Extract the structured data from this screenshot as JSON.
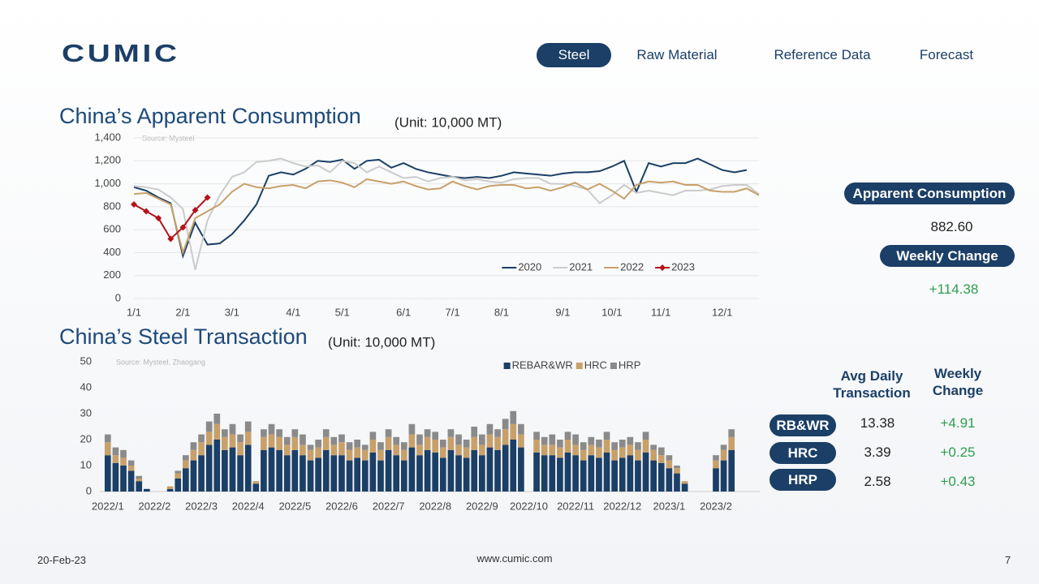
{
  "header": {
    "logo": "CUMIC",
    "tabs": [
      "Steel",
      "Raw Material",
      "Reference Data",
      "Forecast"
    ]
  },
  "chart_data": [
    {
      "type": "line",
      "title": "China’s Apparent Consumption",
      "subtitle": "(Unit: 10,000 MT)",
      "source": "Source: Mysteel",
      "categories": [
        "1/1",
        null,
        null,
        null,
        "2/1",
        null,
        null,
        null,
        "3/1",
        null,
        null,
        null,
        null,
        "4/1",
        null,
        null,
        null,
        "5/1",
        null,
        null,
        null,
        null,
        "6/1",
        null,
        null,
        null,
        "7/1",
        null,
        null,
        null,
        "8/1",
        null,
        null,
        null,
        null,
        "9/1",
        null,
        null,
        null,
        "10/1",
        null,
        null,
        null,
        "11/1",
        null,
        null,
        null,
        null,
        "12/1",
        null,
        null,
        null
      ],
      "ylim": [
        0,
        1400
      ],
      "yticks": [
        0,
        200,
        400,
        600,
        800,
        {
          "value": 1000,
          "label": "1,000"
        },
        {
          "value": 1200,
          "label": "1,200"
        },
        {
          "value": 1400,
          "label": "1,400"
        }
      ],
      "grid": true,
      "legend": "bottom-right",
      "series": [
        {
          "name": "2020",
          "color": "#1b3f66",
          "values": [
            970,
            940,
            880,
            830,
            370,
            660,
            470,
            480,
            560,
            680,
            820,
            1070,
            1100,
            1080,
            1130,
            1200,
            1190,
            1210,
            1130,
            1200,
            1210,
            1140,
            1180,
            1130,
            1100,
            1080,
            1060,
            1050,
            1060,
            1050,
            1070,
            1100,
            1090,
            1080,
            1070,
            1090,
            1100,
            1100,
            1110,
            1150,
            1200,
            930,
            1180,
            1150,
            1180,
            1180,
            1220,
            1170,
            1120,
            1100,
            1120,
            null
          ]
        },
        {
          "name": "2021",
          "color": "#cbcbcb",
          "values": [
            980,
            970,
            950,
            880,
            780,
            250,
            680,
            900,
            1060,
            1100,
            1190,
            1200,
            1220,
            1180,
            1150,
            1160,
            1100,
            1200,
            1180,
            1100,
            1150,
            1100,
            1050,
            1060,
            1020,
            1050,
            1060,
            1030,
            1040,
            1020,
            1010,
            1040,
            1050,
            1050,
            1000,
            1000,
            980,
            950,
            830,
            900,
            990,
            920,
            940,
            920,
            900,
            940,
            940,
            950,
            980,
            990,
            990,
            910
          ]
        },
        {
          "name": "2022",
          "color": "#c8a06a",
          "values": [
            910,
            920,
            870,
            820,
            400,
            700,
            760,
            820,
            930,
            1000,
            970,
            960,
            980,
            990,
            960,
            1020,
            1030,
            1010,
            970,
            1040,
            1020,
            1000,
            1020,
            980,
            950,
            960,
            1020,
            980,
            950,
            980,
            990,
            990,
            960,
            970,
            940,
            970,
            1010,
            950,
            1000,
            940,
            870,
            990,
            1020,
            1010,
            1020,
            990,
            990,
            940,
            930,
            930,
            960,
            900
          ]
        },
        {
          "name": "2023",
          "color": "#b5121b",
          "marker": "diamond",
          "values": [
            820,
            760,
            700,
            520,
            620,
            770,
            880,
            null,
            null,
            null,
            null,
            null,
            null,
            null,
            null,
            null,
            null,
            null,
            null,
            null,
            null,
            null,
            null,
            null,
            null,
            null,
            null,
            null,
            null,
            null,
            null,
            null,
            null,
            null,
            null,
            null,
            null,
            null,
            null,
            null,
            null,
            null,
            null,
            null,
            null,
            null,
            null,
            null,
            null,
            null,
            null,
            null
          ]
        }
      ]
    },
    {
      "type": "bar",
      "stacked": true,
      "title": "China’s Steel Transaction",
      "subtitle": "(Unit: 10,000 MT)",
      "source": "Source: Mysteel, Zhaogang",
      "categories": [
        "2022/1",
        null,
        null,
        null,
        null,
        null,
        "2022/2",
        null,
        null,
        null,
        null,
        null,
        "2022/3",
        null,
        null,
        null,
        null,
        null,
        "2022/4",
        null,
        null,
        null,
        null,
        null,
        "2022/5",
        null,
        null,
        null,
        null,
        null,
        "2022/6",
        null,
        null,
        null,
        null,
        null,
        "2022/7",
        null,
        null,
        null,
        null,
        null,
        "2022/8",
        null,
        null,
        null,
        null,
        null,
        "2022/9",
        null,
        null,
        null,
        null,
        null,
        "2022/10",
        null,
        null,
        null,
        null,
        null,
        "2022/11",
        null,
        null,
        null,
        null,
        null,
        "2022/12",
        null,
        null,
        null,
        null,
        null,
        "2023/1",
        null,
        null,
        null,
        null,
        null,
        "2023/2",
        null,
        null
      ],
      "ylim": [
        0,
        50
      ],
      "yticks": [
        0,
        10,
        20,
        30,
        40,
        50
      ],
      "grid": false,
      "legend": "top-center",
      "series": [
        {
          "name": "REBAR&WR",
          "color": "#1b3f66",
          "values": [
            14,
            11,
            10,
            8,
            4,
            1,
            0,
            0,
            1,
            5,
            9,
            12,
            14,
            18,
            20,
            16,
            17,
            14,
            18,
            3,
            16,
            17,
            16,
            14,
            16,
            14,
            12,
            13,
            16,
            14,
            14,
            12,
            13,
            12,
            15,
            12,
            16,
            14,
            12,
            17,
            14,
            16,
            15,
            13,
            16,
            14,
            13,
            16,
            14,
            17,
            16,
            18,
            20,
            17,
            0,
            15,
            14,
            14,
            13,
            15,
            14,
            12,
            14,
            13,
            15,
            12,
            13,
            14,
            12,
            15,
            12,
            11,
            9,
            7,
            3,
            0,
            0,
            0,
            9,
            12,
            16
          ]
        },
        {
          "name": "HRC",
          "color": "#c8a06a",
          "values": [
            5,
            3,
            3,
            2,
            1,
            0,
            0,
            0,
            1,
            2,
            3,
            4,
            5,
            5,
            6,
            5,
            5,
            5,
            5,
            1,
            5,
            5,
            5,
            4,
            5,
            4,
            4,
            4,
            5,
            4,
            5,
            4,
            4,
            4,
            5,
            4,
            5,
            4,
            4,
            5,
            4,
            5,
            5,
            4,
            5,
            4,
            4,
            5,
            4,
            5,
            5,
            6,
            6,
            5,
            0,
            5,
            4,
            4,
            4,
            5,
            4,
            4,
            4,
            4,
            5,
            4,
            4,
            4,
            4,
            5,
            4,
            3,
            3,
            2,
            1,
            0,
            0,
            0,
            3,
            4,
            5
          ]
        },
        {
          "name": "HRP",
          "color": "#8a8a8a",
          "values": [
            3,
            3,
            3,
            2,
            1,
            0,
            0,
            0,
            0,
            1,
            2,
            3,
            3,
            4,
            4,
            3,
            4,
            3,
            4,
            0,
            3,
            4,
            3,
            3,
            3,
            4,
            2,
            3,
            3,
            3,
            3,
            3,
            3,
            2,
            3,
            3,
            3,
            3,
            3,
            4,
            4,
            3,
            3,
            3,
            3,
            4,
            3,
            4,
            4,
            4,
            3,
            4,
            5,
            4,
            0,
            3,
            3,
            4,
            3,
            3,
            4,
            3,
            3,
            3,
            3,
            3,
            3,
            3,
            3,
            3,
            2,
            3,
            2,
            1,
            0,
            0,
            0,
            0,
            2,
            2,
            3
          ]
        }
      ]
    }
  ],
  "consumption_panel": {
    "label": "Apparent Consumption",
    "value": "882.60",
    "change_label": "Weekly Change",
    "change": "+114.38"
  },
  "transaction_table": {
    "headers": [
      "Avg Daily Transaction",
      "Weekly Change"
    ],
    "rows": [
      [
        "RB&WR",
        "13.38",
        "+4.91"
      ],
      [
        "HRC",
        "3.39",
        "+0.25"
      ],
      [
        "HRP",
        "2.58",
        "+0.43"
      ]
    ]
  },
  "footer": {
    "date": "20-Feb-23",
    "site": "www.cumic.com",
    "page": "7"
  }
}
